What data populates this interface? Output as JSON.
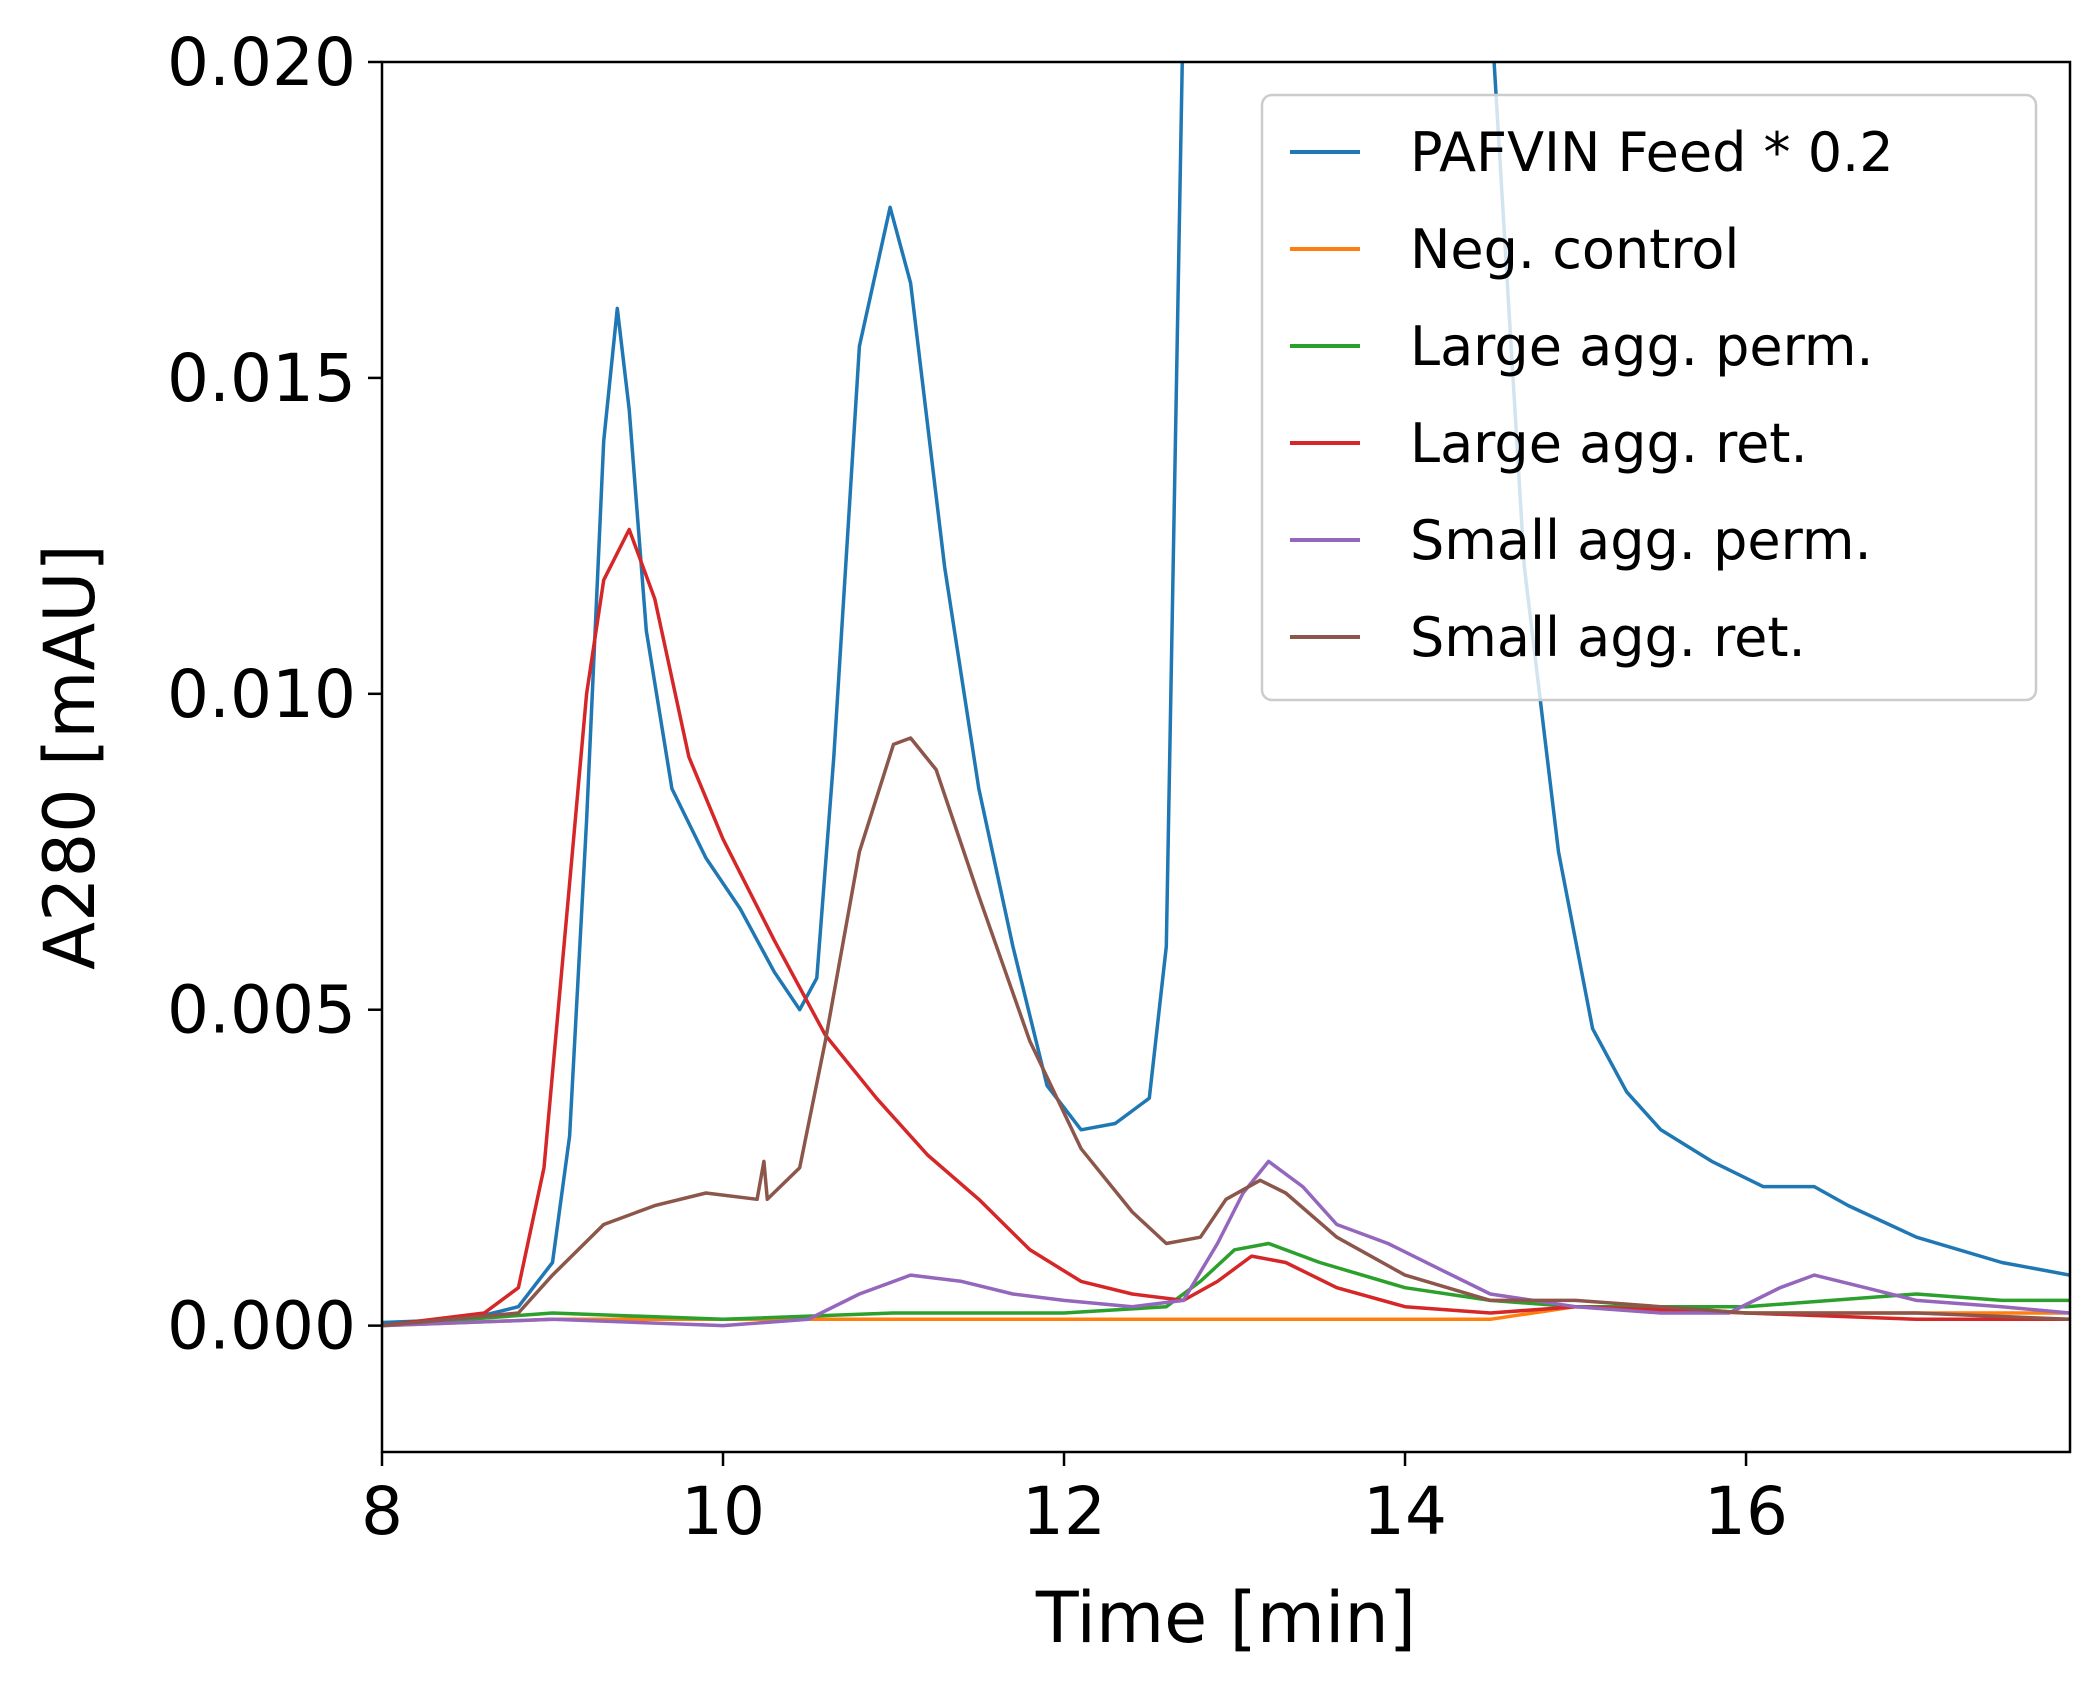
{
  "chart_data": {
    "type": "line",
    "xlabel": "Time [min]",
    "ylabel": "A280 [mAU]",
    "xlim": [
      8,
      17.9
    ],
    "ylim": [
      -0.002,
      0.02
    ],
    "xticks": [
      {
        "value": 8,
        "label": "8"
      },
      {
        "value": 10,
        "label": "10"
      },
      {
        "value": 12,
        "label": "12"
      },
      {
        "value": 14,
        "label": "14"
      },
      {
        "value": 16,
        "label": "16"
      }
    ],
    "yticks": [
      {
        "value": 0.0,
        "label": "0.000"
      },
      {
        "value": 0.005,
        "label": "0.005"
      },
      {
        "value": 0.01,
        "label": "0.010"
      },
      {
        "value": 0.015,
        "label": "0.015"
      },
      {
        "value": 0.02,
        "label": "0.020"
      }
    ],
    "grid": false,
    "legend_position": "top-right",
    "series": [
      {
        "name": "PAFVIN Feed * 0.2",
        "color": "#1f77b4",
        "points": [
          [
            8.0,
            5e-05
          ],
          [
            8.5,
            0.0001
          ],
          [
            8.8,
            0.0003
          ],
          [
            9.0,
            0.001
          ],
          [
            9.1,
            0.003
          ],
          [
            9.2,
            0.008
          ],
          [
            9.3,
            0.014
          ],
          [
            9.38,
            0.0161
          ],
          [
            9.45,
            0.0145
          ],
          [
            9.55,
            0.011
          ],
          [
            9.7,
            0.0085
          ],
          [
            9.9,
            0.0074
          ],
          [
            10.1,
            0.0066
          ],
          [
            10.3,
            0.0056
          ],
          [
            10.45,
            0.005
          ],
          [
            10.55,
            0.0055
          ],
          [
            10.65,
            0.009
          ],
          [
            10.8,
            0.0155
          ],
          [
            10.98,
            0.0177
          ],
          [
            11.1,
            0.0165
          ],
          [
            11.3,
            0.012
          ],
          [
            11.5,
            0.0085
          ],
          [
            11.7,
            0.006
          ],
          [
            11.9,
            0.0038
          ],
          [
            12.1,
            0.0031
          ],
          [
            12.3,
            0.0032
          ],
          [
            12.5,
            0.0036
          ],
          [
            12.6,
            0.006
          ],
          [
            12.7,
            0.021
          ],
          [
            12.8,
            0.03
          ],
          [
            14.4,
            0.03
          ],
          [
            14.5,
            0.021
          ],
          [
            14.7,
            0.012
          ],
          [
            14.9,
            0.0075
          ],
          [
            15.1,
            0.0047
          ],
          [
            15.3,
            0.0037
          ],
          [
            15.5,
            0.0031
          ],
          [
            15.8,
            0.0026
          ],
          [
            16.1,
            0.0022
          ],
          [
            16.4,
            0.0022
          ],
          [
            16.6,
            0.0019
          ],
          [
            17.0,
            0.0014
          ],
          [
            17.5,
            0.001
          ],
          [
            17.9,
            0.0008
          ]
        ]
      },
      {
        "name": "Neg. control",
        "color": "#ff7f0e",
        "points": [
          [
            8.0,
            0.0
          ],
          [
            9.0,
            0.0001
          ],
          [
            10.0,
            0.0001
          ],
          [
            11.0,
            0.0001
          ],
          [
            12.0,
            0.0001
          ],
          [
            13.0,
            0.0001
          ],
          [
            14.0,
            0.0001
          ],
          [
            14.5,
            0.0001
          ],
          [
            15.0,
            0.0003
          ],
          [
            15.5,
            0.0003
          ],
          [
            16.0,
            0.0002
          ],
          [
            17.0,
            0.0002
          ],
          [
            17.9,
            0.0002
          ]
        ]
      },
      {
        "name": "Large agg. perm.",
        "color": "#2ca02c",
        "points": [
          [
            8.0,
            0.0
          ],
          [
            9.0,
            0.0002
          ],
          [
            10.0,
            0.0001
          ],
          [
            11.0,
            0.0002
          ],
          [
            12.0,
            0.0002
          ],
          [
            12.6,
            0.0003
          ],
          [
            12.8,
            0.0007
          ],
          [
            13.0,
            0.0012
          ],
          [
            13.2,
            0.0013
          ],
          [
            13.5,
            0.001
          ],
          [
            14.0,
            0.0006
          ],
          [
            14.5,
            0.0004
          ],
          [
            15.0,
            0.0003
          ],
          [
            15.5,
            0.0003
          ],
          [
            16.0,
            0.0003
          ],
          [
            16.5,
            0.0004
          ],
          [
            17.0,
            0.0005
          ],
          [
            17.5,
            0.0004
          ],
          [
            17.9,
            0.0004
          ]
        ]
      },
      {
        "name": "Large agg. ret.",
        "color": "#d62728",
        "points": [
          [
            8.0,
            0.0
          ],
          [
            8.6,
            0.0002
          ],
          [
            8.8,
            0.0006
          ],
          [
            8.95,
            0.0025
          ],
          [
            9.1,
            0.007
          ],
          [
            9.2,
            0.01
          ],
          [
            9.3,
            0.0118
          ],
          [
            9.45,
            0.0126
          ],
          [
            9.6,
            0.0115
          ],
          [
            9.8,
            0.009
          ],
          [
            10.0,
            0.0077
          ],
          [
            10.3,
            0.0061
          ],
          [
            10.6,
            0.0046
          ],
          [
            10.9,
            0.0036
          ],
          [
            11.2,
            0.0027
          ],
          [
            11.5,
            0.002
          ],
          [
            11.8,
            0.0012
          ],
          [
            12.1,
            0.0007
          ],
          [
            12.4,
            0.0005
          ],
          [
            12.7,
            0.0004
          ],
          [
            12.9,
            0.0007
          ],
          [
            13.1,
            0.0011
          ],
          [
            13.3,
            0.001
          ],
          [
            13.6,
            0.0006
          ],
          [
            14.0,
            0.0003
          ],
          [
            14.5,
            0.0002
          ],
          [
            15.0,
            0.0003
          ],
          [
            16.0,
            0.0002
          ],
          [
            17.0,
            0.0001
          ],
          [
            17.9,
            0.0001
          ]
        ]
      },
      {
        "name": "Small agg. perm.",
        "color": "#9467bd",
        "points": [
          [
            8.0,
            0.0
          ],
          [
            9.0,
            0.0001
          ],
          [
            10.0,
            0.0
          ],
          [
            10.5,
            0.0001
          ],
          [
            10.8,
            0.0005
          ],
          [
            11.1,
            0.0008
          ],
          [
            11.4,
            0.0007
          ],
          [
            11.7,
            0.0005
          ],
          [
            12.0,
            0.0004
          ],
          [
            12.4,
            0.0003
          ],
          [
            12.7,
            0.0004
          ],
          [
            12.9,
            0.0013
          ],
          [
            13.05,
            0.0021
          ],
          [
            13.2,
            0.0026
          ],
          [
            13.4,
            0.0022
          ],
          [
            13.6,
            0.0016
          ],
          [
            13.9,
            0.0013
          ],
          [
            14.2,
            0.0009
          ],
          [
            14.5,
            0.0005
          ],
          [
            15.0,
            0.0003
          ],
          [
            15.5,
            0.0002
          ],
          [
            15.9,
            0.0002
          ],
          [
            16.2,
            0.0006
          ],
          [
            16.4,
            0.0008
          ],
          [
            16.7,
            0.0006
          ],
          [
            17.0,
            0.0004
          ],
          [
            17.5,
            0.0003
          ],
          [
            17.9,
            0.0002
          ]
        ]
      },
      {
        "name": "Small agg. ret.",
        "color": "#8c564b",
        "points": [
          [
            8.0,
            0.0
          ],
          [
            8.8,
            0.0002
          ],
          [
            9.0,
            0.0008
          ],
          [
            9.3,
            0.0016
          ],
          [
            9.6,
            0.0019
          ],
          [
            9.9,
            0.0021
          ],
          [
            10.2,
            0.002
          ],
          [
            10.24,
            0.0026
          ],
          [
            10.26,
            0.002
          ],
          [
            10.45,
            0.0025
          ],
          [
            10.6,
            0.0045
          ],
          [
            10.8,
            0.0075
          ],
          [
            11.0,
            0.0092
          ],
          [
            11.1,
            0.0093
          ],
          [
            11.25,
            0.0088
          ],
          [
            11.5,
            0.0068
          ],
          [
            11.8,
            0.0045
          ],
          [
            12.1,
            0.0028
          ],
          [
            12.4,
            0.0018
          ],
          [
            12.6,
            0.0013
          ],
          [
            12.8,
            0.0014
          ],
          [
            12.95,
            0.002
          ],
          [
            13.15,
            0.0023
          ],
          [
            13.3,
            0.0021
          ],
          [
            13.6,
            0.0014
          ],
          [
            14.0,
            0.0008
          ],
          [
            14.5,
            0.0004
          ],
          [
            15.0,
            0.0004
          ],
          [
            15.5,
            0.0003
          ],
          [
            16.0,
            0.0002
          ],
          [
            16.5,
            0.0002
          ],
          [
            17.0,
            0.0002
          ],
          [
            17.9,
            0.0001
          ]
        ]
      }
    ]
  }
}
